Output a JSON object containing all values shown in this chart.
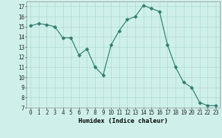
{
  "x": [
    0,
    1,
    2,
    3,
    4,
    5,
    6,
    7,
    8,
    9,
    10,
    11,
    12,
    13,
    14,
    15,
    16,
    17,
    18,
    19,
    20,
    21,
    22,
    23
  ],
  "y": [
    15.1,
    15.3,
    15.2,
    15.0,
    13.9,
    13.9,
    12.2,
    12.8,
    11.0,
    10.2,
    13.2,
    14.6,
    15.7,
    16.0,
    17.1,
    16.8,
    16.5,
    13.2,
    11.0,
    9.5,
    9.0,
    7.5,
    7.2,
    7.2
  ],
  "line_color": "#2e7d6e",
  "marker": "D",
  "marker_size": 2.5,
  "bg_color": "#cff0ea",
  "grid_color": "#aad8d0",
  "xlabel": "Humidex (Indice chaleur)",
  "ylim": [
    7,
    17.5
  ],
  "xlim": [
    -0.5,
    23.5
  ],
  "yticks": [
    7,
    8,
    9,
    10,
    11,
    12,
    13,
    14,
    15,
    16,
    17
  ],
  "xticks": [
    0,
    1,
    2,
    3,
    4,
    5,
    6,
    7,
    8,
    9,
    10,
    11,
    12,
    13,
    14,
    15,
    16,
    17,
    18,
    19,
    20,
    21,
    22,
    23
  ],
  "label_fontsize": 6.5,
  "tick_fontsize": 5.5
}
